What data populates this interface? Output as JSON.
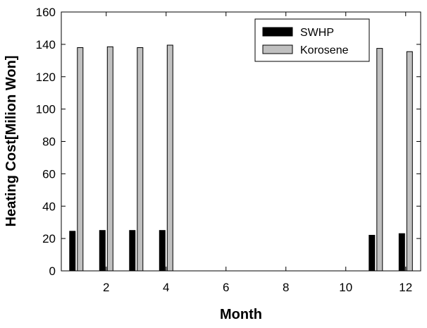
{
  "chart_data": {
    "type": "bar",
    "title": "",
    "xlabel": "Month",
    "ylabel": "Heating Cost[Milion Won]",
    "xlim": [
      0.5,
      12.5
    ],
    "ylim": [
      0,
      160
    ],
    "xticks": [
      2,
      4,
      6,
      8,
      10,
      12
    ],
    "yticks": [
      0,
      20,
      40,
      60,
      80,
      100,
      120,
      140,
      160
    ],
    "grid": false,
    "legend_position": "top-right",
    "x": [
      1,
      2,
      3,
      4,
      11,
      12
    ],
    "series": [
      {
        "name": "SWHP",
        "color": "#000000",
        "values": [
          24.5,
          25,
          25,
          25,
          22,
          23
        ]
      },
      {
        "name": "Korosene",
        "color": "#c0c0c0",
        "values": [
          138,
          138.5,
          138,
          139.5,
          137.5,
          135.5
        ]
      }
    ]
  }
}
